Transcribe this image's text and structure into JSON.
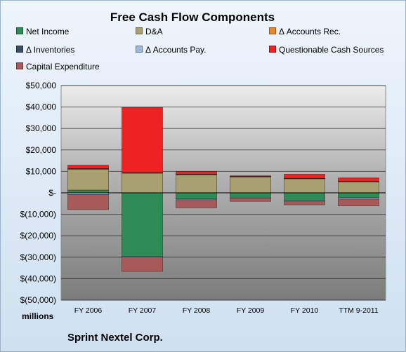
{
  "chart_data": {
    "type": "bar",
    "stacked": true,
    "title": "Free Cash Flow Components",
    "unit_label": "millions",
    "company": "Sprint Nextel Corp.",
    "categories": [
      "FY 2006",
      "FY 2007",
      "FY 2008",
      "FY 2009",
      "FY 2010",
      "TTM 9-2011"
    ],
    "ylim": [
      -50000,
      50000
    ],
    "yticks": [
      50000,
      40000,
      30000,
      20000,
      10000,
      0,
      -10000,
      -20000,
      -30000,
      -40000,
      -50000
    ],
    "ytick_labels": [
      "$50,000",
      "$40,000",
      "$30,000",
      "$20,000",
      "$10,000",
      "$-",
      "$(10,000)",
      "$(20,000)",
      "$(30,000)",
      "$(40,000)",
      "$(50,000)"
    ],
    "grid": true,
    "legend_position": "top",
    "series": [
      {
        "name": "Net Income",
        "color": "#2e8b57",
        "values": [
          1300,
          -29600,
          -2800,
          -2400,
          -3500,
          -2300
        ]
      },
      {
        "name": "D&A",
        "color": "#a8a070",
        "values": [
          9700,
          9200,
          8400,
          7400,
          6600,
          5100
        ]
      },
      {
        "name": "Δ Accounts Rec.",
        "color": "#e8872a",
        "values": [
          200,
          100,
          200,
          150,
          100,
          150
        ]
      },
      {
        "name": "Δ Inventories",
        "color": "#3b4e63",
        "values": [
          100,
          100,
          100,
          100,
          100,
          100
        ]
      },
      {
        "name": "Δ Accounts Pay.",
        "color": "#9fb7d6",
        "values": [
          -800,
          -400,
          -400,
          0,
          -400,
          -600
        ]
      },
      {
        "name": "Questionable Cash Sources",
        "color": "#ee2222",
        "values": [
          1600,
          30400,
          1300,
          300,
          1900,
          1600
        ]
      },
      {
        "name": "Capital Expenditure",
        "color": "#a85a5a",
        "values": [
          -7000,
          -6600,
          -3800,
          -1600,
          -1700,
          -3200
        ]
      }
    ]
  }
}
